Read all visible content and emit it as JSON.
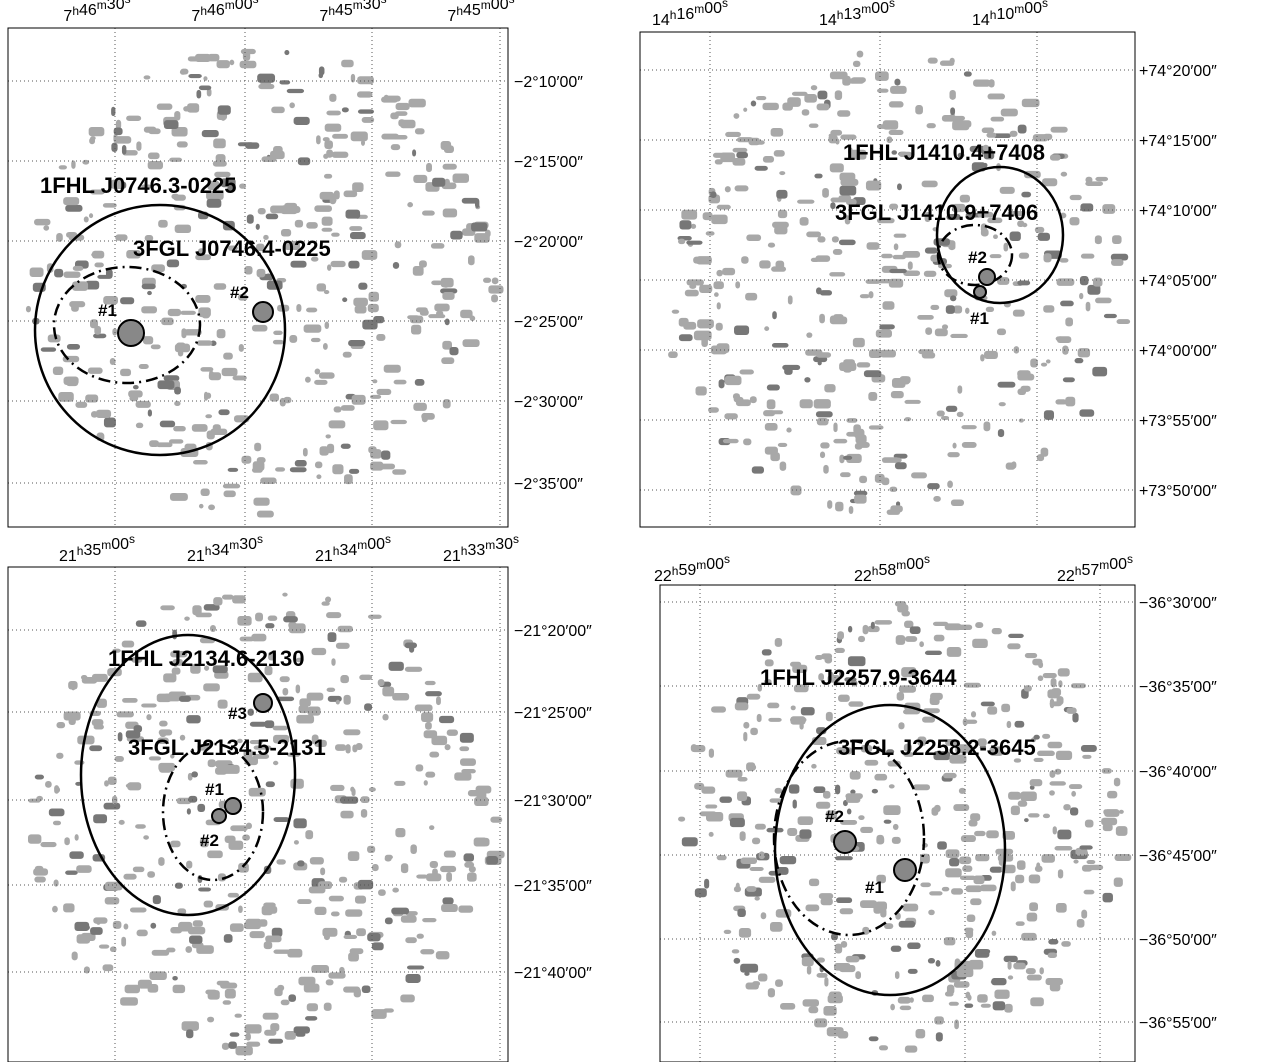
{
  "panels": [
    {
      "ra_ticks": [
        "7h46m30s",
        "7h46m00s",
        "7h45m30s",
        "7h45m00s"
      ],
      "dec_ticks": [
        "−2°10′00″",
        "−2°15′00″",
        "−2°20′00″",
        "−2°25′00″",
        "−2°30′00″",
        "−2°35′00″"
      ],
      "fhl": "1FHL J0746.3-0225",
      "fgl": "3FGL J0746.4-0225",
      "markers": [
        "#1",
        "#2"
      ]
    },
    {
      "ra_ticks": [
        "14h16m00s",
        "14h13m00s",
        "14h10m00s"
      ],
      "dec_ticks": [
        "+74°20′00″",
        "+74°15′00″",
        "+74°10′00″",
        "+74°05′00″",
        "+74°00′00″",
        "+73°55′00″",
        "+73°50′00″"
      ],
      "fhl": "1FHL J1410.4+7408",
      "fgl": "3FGL J1410.9+7406",
      "markers": [
        "#2",
        "#1"
      ]
    },
    {
      "ra_ticks": [
        "21h35m00s",
        "21h34m30s",
        "21h34m00s",
        "21h33m30s"
      ],
      "dec_ticks": [
        "−21°20′00″",
        "−21°25′00″",
        "−21°30′00″",
        "−21°35′00″",
        "−21°40′00″"
      ],
      "fhl": "1FHL J2134.6-2130",
      "fgl": "3FGL J2134.5-2131",
      "markers": [
        "#3",
        "#1",
        "#2"
      ]
    },
    {
      "ra_ticks": [
        "22h59m00s",
        "22h58m00s",
        "22h57m00s"
      ],
      "dec_ticks": [
        "−36°30′00″",
        "−36°35′00″",
        "−36°40′00″",
        "−36°45′00″",
        "−36°50′00″",
        "−36°55′00″"
      ],
      "fhl": "1FHL J2257.9-3644",
      "fgl": "3FGL J2258.2-3645",
      "markers": [
        "#2",
        "#1"
      ]
    }
  ]
}
